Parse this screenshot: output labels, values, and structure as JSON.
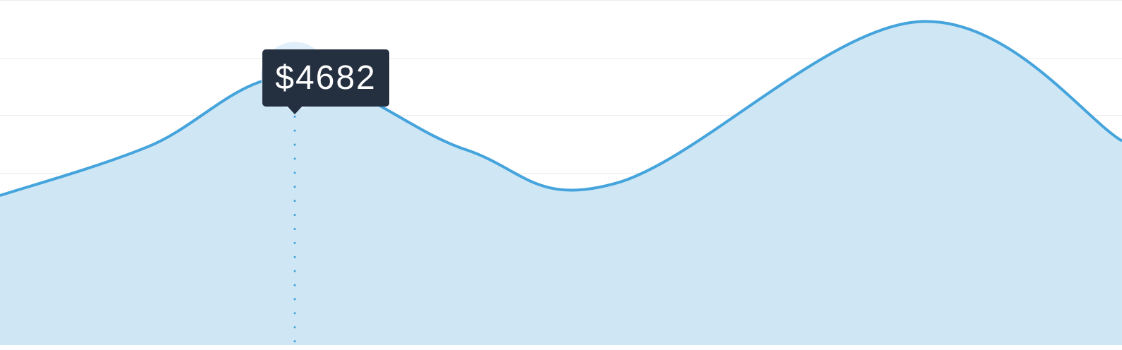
{
  "chart_data": {
    "type": "area",
    "x": [
      0,
      1,
      2,
      3,
      4,
      5,
      6
    ],
    "values": [
      2600,
      3450,
      4682,
      3400,
      2820,
      5620,
      3550
    ],
    "ylim": [
      0,
      6000
    ],
    "grid": true,
    "colors": {
      "line": "#45a4dc",
      "fill": "#cfe7f5",
      "grid": "#ececec",
      "tooltip_bg": "#243040",
      "marker_outer": "#dbecf8",
      "marker_mid": "#b3d8f1",
      "marker_inner": "#7cc0e8"
    },
    "tooltip": {
      "index": 2,
      "label": "$4682"
    }
  }
}
